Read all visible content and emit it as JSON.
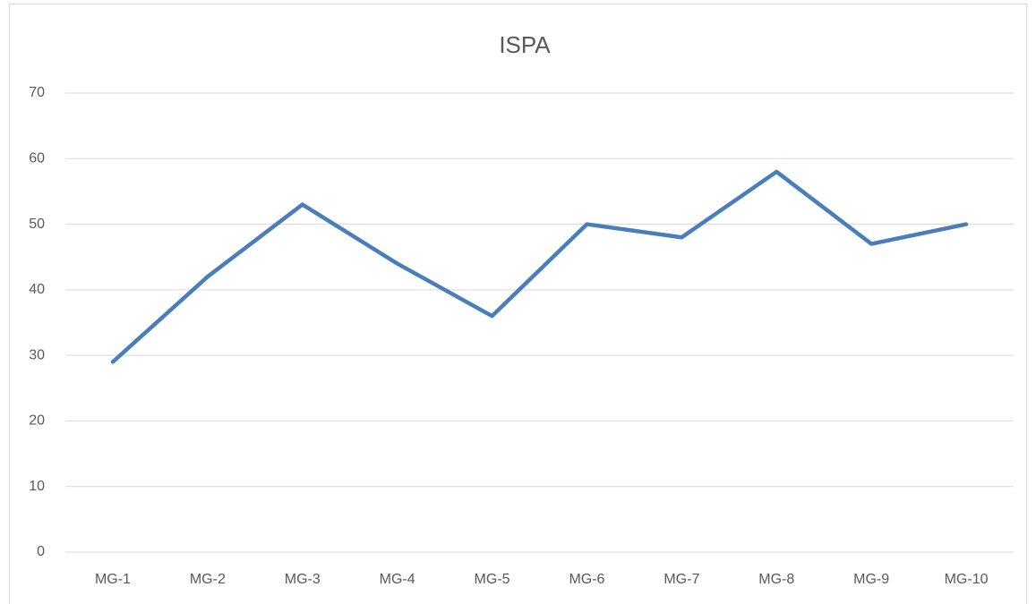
{
  "chart_data": {
    "type": "line",
    "title": "ISPA",
    "categories": [
      "MG-1",
      "MG-2",
      "MG-3",
      "MG-4",
      "MG-5",
      "MG-6",
      "MG-7",
      "MG-8",
      "MG-9",
      "MG-10"
    ],
    "values": [
      29,
      42,
      53,
      44,
      36,
      50,
      48,
      58,
      47,
      50
    ],
    "color": "#4a7ebb",
    "ylim": [
      0,
      70
    ],
    "yticks": [
      0,
      10,
      20,
      30,
      40,
      50,
      60,
      70
    ],
    "grid": true
  }
}
